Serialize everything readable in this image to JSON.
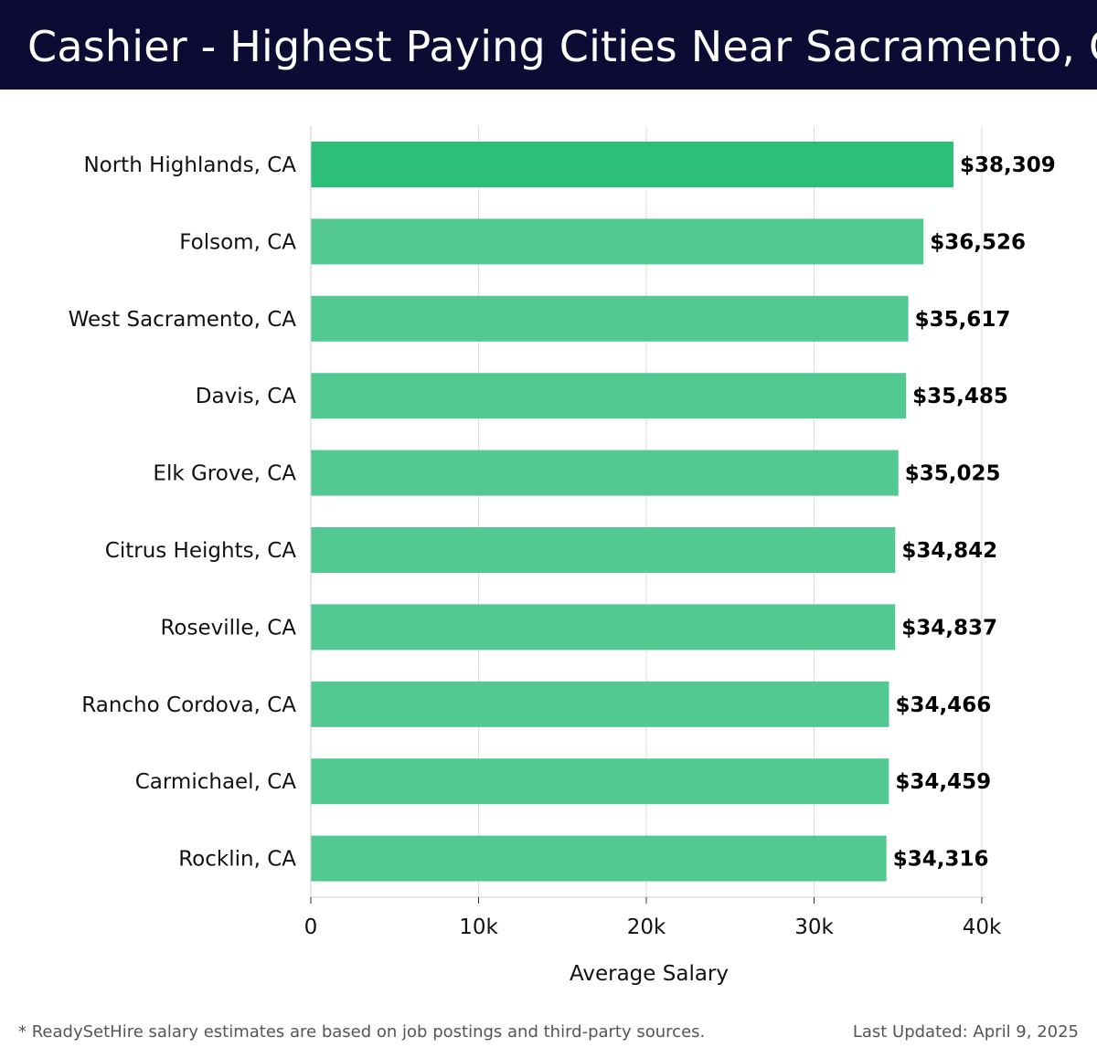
{
  "header": {
    "title": "Cashier - Highest Paying Cities Near Sacramento, CA"
  },
  "footer": {
    "note": "* ReadySetHire salary estimates are based on job postings and third-party sources.",
    "updated": "Last Updated: April 9, 2025"
  },
  "colors": {
    "header_bg": "#0b0b33",
    "bar_top": "#2dbf78",
    "bar_other": "#52c990"
  },
  "chart_data": {
    "type": "bar",
    "orientation": "horizontal",
    "title": "Cashier - Highest Paying Cities Near Sacramento, CA",
    "xlabel": "Average Salary",
    "ylabel": "",
    "xlim": [
      0,
      40000
    ],
    "xticks": [
      0,
      10000,
      20000,
      30000,
      40000
    ],
    "xtick_labels": [
      "0",
      "10k",
      "20k",
      "30k",
      "40k"
    ],
    "grid": true,
    "categories": [
      "North Highlands, CA",
      "Folsom, CA",
      "West Sacramento, CA",
      "Davis, CA",
      "Elk Grove, CA",
      "Citrus Heights, CA",
      "Roseville, CA",
      "Rancho Cordova, CA",
      "Carmichael, CA",
      "Rocklin, CA"
    ],
    "values": [
      38309,
      36526,
      35617,
      35485,
      35025,
      34842,
      34837,
      34466,
      34459,
      34316
    ],
    "value_labels": [
      "$38,309",
      "$36,526",
      "$35,617",
      "$35,485",
      "$35,025",
      "$34,842",
      "$34,837",
      "$34,466",
      "$34,459",
      "$34,316"
    ]
  }
}
